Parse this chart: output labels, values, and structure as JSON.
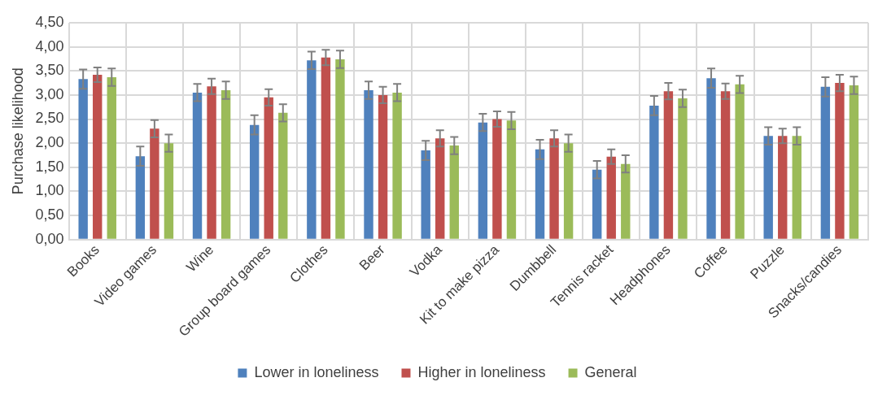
{
  "chart_data": {
    "type": "bar",
    "ylabel": "Purchase likelihood",
    "categories": [
      "Books",
      "Video games",
      "Wine",
      "Group board games",
      "Clothes",
      "Beer",
      "Vodka",
      "Kit to make pizza",
      "Dumbbell",
      "Tennis racket",
      "Headphones",
      "Coffee",
      "Puzzle",
      "Snacks/candies"
    ],
    "series": [
      {
        "name": "Lower in loneliness",
        "color": "#4f81bd",
        "values": [
          3.33,
          1.73,
          3.05,
          2.38,
          3.72,
          3.1,
          1.85,
          2.43,
          1.87,
          1.45,
          2.78,
          3.35,
          2.15,
          3.17
        ],
        "errors": [
          0.2,
          0.2,
          0.18,
          0.2,
          0.18,
          0.18,
          0.2,
          0.18,
          0.2,
          0.18,
          0.2,
          0.2,
          0.18,
          0.2
        ]
      },
      {
        "name": "Higher in loneliness",
        "color": "#c0504d",
        "values": [
          3.42,
          2.3,
          3.18,
          2.95,
          3.78,
          3.0,
          2.1,
          2.5,
          2.1,
          1.72,
          3.08,
          3.08,
          2.15,
          3.25
        ],
        "errors": [
          0.15,
          0.18,
          0.16,
          0.17,
          0.16,
          0.17,
          0.17,
          0.16,
          0.17,
          0.15,
          0.17,
          0.16,
          0.15,
          0.17
        ]
      },
      {
        "name": "General",
        "color": "#9bbb59",
        "values": [
          3.37,
          2.0,
          3.1,
          2.63,
          3.74,
          3.05,
          1.95,
          2.47,
          2.0,
          1.57,
          2.93,
          3.22,
          2.15,
          3.2
        ],
        "errors": [
          0.18,
          0.18,
          0.18,
          0.18,
          0.18,
          0.18,
          0.18,
          0.18,
          0.18,
          0.18,
          0.18,
          0.18,
          0.18,
          0.18
        ]
      }
    ],
    "ylim": [
      0,
      4.5
    ],
    "yticks": [
      {
        "value": 0,
        "label": "0,00"
      },
      {
        "value": 0.5,
        "label": "0,50"
      },
      {
        "value": 1,
        "label": "1,00"
      },
      {
        "value": 1.5,
        "label": "1,50"
      },
      {
        "value": 2,
        "label": "2,00"
      },
      {
        "value": 2.5,
        "label": "2,50"
      },
      {
        "value": 3,
        "label": "3,00"
      },
      {
        "value": 3.5,
        "label": "3,50"
      },
      {
        "value": 4,
        "label": "4,00"
      },
      {
        "value": 4.5,
        "label": "4,50"
      }
    ],
    "grid": true,
    "legend": "bottom"
  }
}
